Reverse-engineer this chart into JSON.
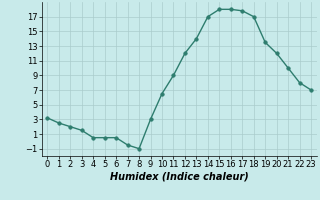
{
  "x": [
    0,
    1,
    2,
    3,
    4,
    5,
    6,
    7,
    8,
    9,
    10,
    11,
    12,
    13,
    14,
    15,
    16,
    17,
    18,
    19,
    20,
    21,
    22,
    23
  ],
  "y": [
    3.2,
    2.5,
    2.0,
    1.5,
    0.5,
    0.5,
    0.5,
    -0.5,
    -1.0,
    3.0,
    6.5,
    9.0,
    12.0,
    14.0,
    17.0,
    18.0,
    18.0,
    17.8,
    17.0,
    13.5,
    12.0,
    10.0,
    8.0,
    7.0
  ],
  "line_color": "#2e7d6e",
  "bg_color": "#c8eaea",
  "grid_color": "#aacccc",
  "xlabel": "Humidex (Indice chaleur)",
  "xlim": [
    -0.5,
    23.5
  ],
  "ylim": [
    -2,
    19
  ],
  "yticks": [
    -1,
    1,
    3,
    5,
    7,
    9,
    11,
    13,
    15,
    17
  ],
  "xticks": [
    0,
    1,
    2,
    3,
    4,
    5,
    6,
    7,
    8,
    9,
    10,
    11,
    12,
    13,
    14,
    15,
    16,
    17,
    18,
    19,
    20,
    21,
    22,
    23
  ],
  "xlabel_fontsize": 7,
  "tick_fontsize": 6,
  "marker_size": 2.5,
  "linewidth": 1.0
}
